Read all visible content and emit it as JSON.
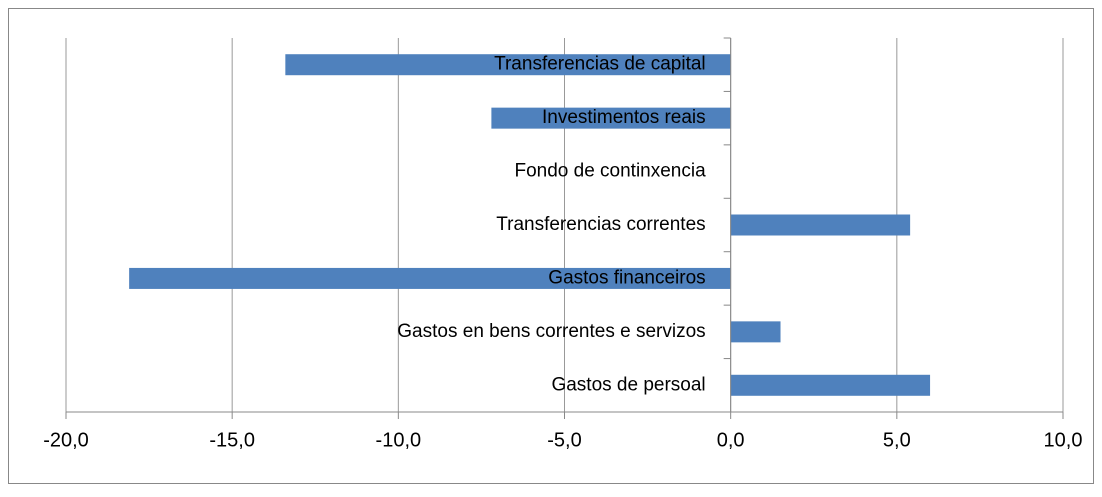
{
  "chart_data": {
    "type": "bar",
    "orientation": "horizontal",
    "categories": [
      "Gastos de persoal",
      "Gastos en bens correntes e servizos",
      "Gastos financeiros",
      "Transferencias correntes",
      "Fondo de continxencia",
      "Investimentos reais",
      "Transferencias de capital"
    ],
    "values": [
      6.0,
      1.5,
      -18.1,
      5.4,
      0,
      -7.2,
      -13.4
    ],
    "color": "#4f81bd",
    "xlim": [
      -20,
      10
    ],
    "xticks": [
      {
        "value": -20,
        "label": "-20,0"
      },
      {
        "value": -15,
        "label": "-15,0"
      },
      {
        "value": -10,
        "label": "-10,0"
      },
      {
        "value": -5,
        "label": "-5,0"
      },
      {
        "value": 0,
        "label": "0,0"
      },
      {
        "value": 5,
        "label": "5,0"
      },
      {
        "value": 10,
        "label": "10,0"
      }
    ],
    "grid": true
  }
}
